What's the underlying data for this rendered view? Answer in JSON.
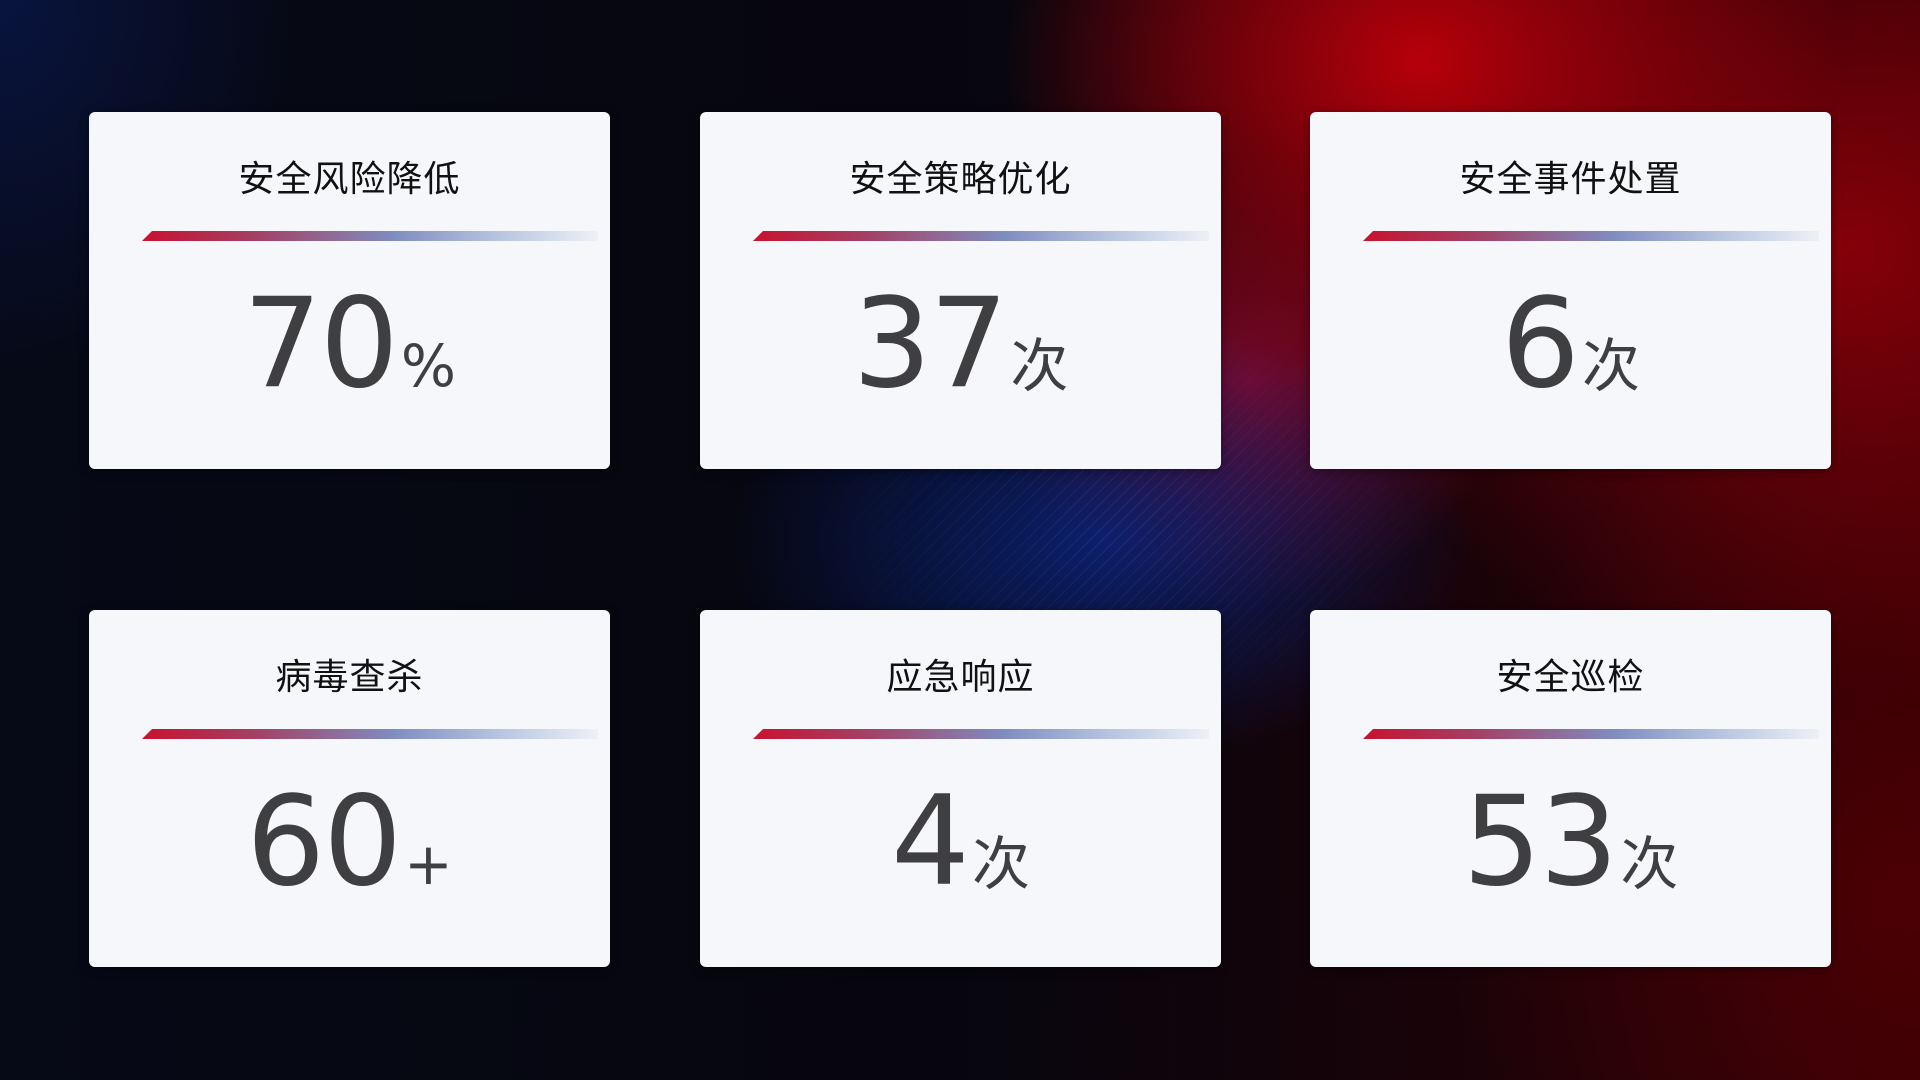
{
  "cards": [
    {
      "title": "安全风险降低",
      "value": "70",
      "unit": "%"
    },
    {
      "title": "安全策略优化",
      "value": "37",
      "unit": "次"
    },
    {
      "title": "安全事件处置",
      "value": "6",
      "unit": "次"
    },
    {
      "title": "病毒查杀",
      "value": "60",
      "unit": "+"
    },
    {
      "title": "应急响应",
      "value": "4",
      "unit": "次"
    },
    {
      "title": "安全巡检",
      "value": "53",
      "unit": "次"
    }
  ],
  "colors": {
    "accent_red": "#c8122f",
    "accent_blue": "#7f8cc0",
    "card_bg": "#f5f7fb",
    "value_text": "#3f3f42"
  }
}
